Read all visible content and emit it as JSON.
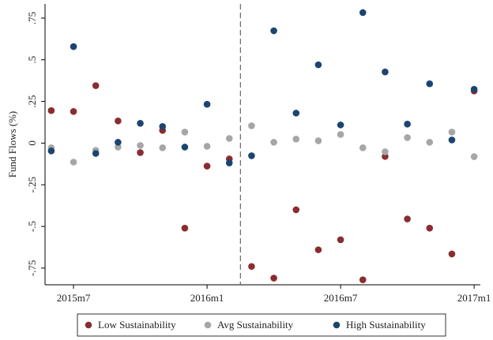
{
  "chart_data": {
    "type": "scatter",
    "y_label": "Fund Flows (%)",
    "x": [
      665,
      666,
      667,
      668,
      669,
      670,
      671,
      672,
      673,
      674,
      675,
      676,
      677,
      678,
      679,
      680,
      681,
      682,
      683,
      684
    ],
    "series": [
      {
        "name": "Low Sustainability",
        "color": "#8b2c30",
        "values": [
          0.195,
          0.19,
          0.345,
          0.133,
          -0.057,
          0.076,
          -0.51,
          -0.138,
          -0.095,
          -0.74,
          -0.81,
          -0.4,
          -0.64,
          -0.58,
          -0.82,
          -0.08,
          -0.455,
          -0.51,
          -0.665,
          0.313
        ]
      },
      {
        "name": "Avg Sustainability",
        "color": "#a6a6a6",
        "values": [
          -0.028,
          -0.114,
          -0.043,
          -0.024,
          -0.014,
          -0.028,
          0.066,
          -0.019,
          0.028,
          0.104,
          0.005,
          0.024,
          0.014,
          0.052,
          -0.028,
          -0.052,
          0.033,
          0.005,
          0.066,
          -0.081
        ]
      },
      {
        "name": "High Sustainability",
        "color": "#1b4571",
        "values": [
          -0.047,
          0.579,
          -0.062,
          0.005,
          0.119,
          0.1,
          -0.024,
          0.233,
          -0.119,
          -0.076,
          0.674,
          0.18,
          0.47,
          0.109,
          0.783,
          0.427,
          0.114,
          0.356,
          0.019,
          0.323
        ]
      }
    ],
    "xlim": [
      664.72,
      684.28
    ],
    "xticks": [
      {
        "value": 666,
        "label": "2015m7"
      },
      {
        "value": 672,
        "label": "2016m1"
      },
      {
        "value": 678,
        "label": "2016m7"
      },
      {
        "value": 684,
        "label": "2017m1"
      }
    ],
    "ylim": [
      -0.85,
      0.835
    ],
    "yticks": [
      {
        "value": -0.75,
        "label": "-.75"
      },
      {
        "value": -0.5,
        "label": "-.5"
      },
      {
        "value": -0.25,
        "label": "-.25"
      },
      0,
      {
        "value": 0.25,
        "label": ".25"
      },
      {
        "value": 0.5,
        "label": ".5"
      },
      {
        "value": 0.75,
        "label": ".75"
      }
    ],
    "reference_x": 673.5,
    "grid": false,
    "legend": "bottom"
  }
}
